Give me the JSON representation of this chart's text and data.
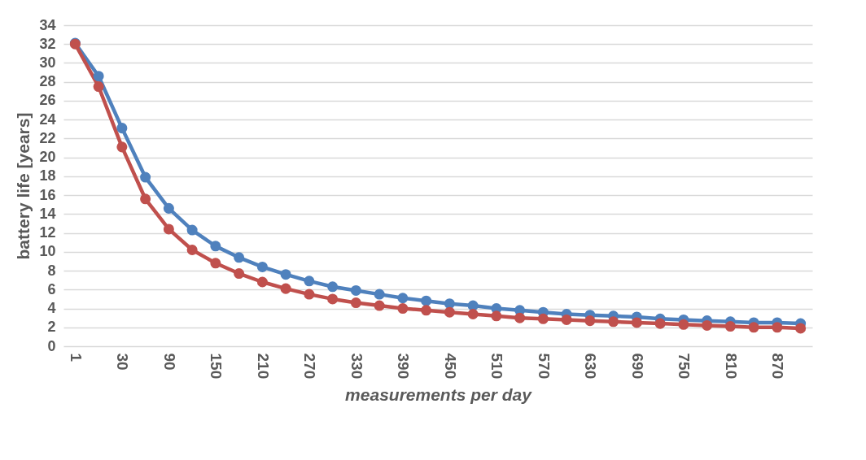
{
  "chart_data": {
    "type": "line",
    "xlabel": "measurements per day",
    "ylabel": "battery life [years]",
    "categories": [
      "1",
      null,
      "30",
      null,
      "90",
      null,
      "150",
      null,
      "210",
      null,
      "270",
      null,
      "330",
      null,
      "390",
      null,
      "450",
      null,
      "510",
      null,
      "570",
      null,
      "630",
      null,
      "690",
      null,
      "750",
      null,
      "810",
      null,
      "870",
      null
    ],
    "series": [
      {
        "color": "#4f81bd",
        "values": [
          32.1,
          28.6,
          23.1,
          17.9,
          14.6,
          12.3,
          10.6,
          9.4,
          8.4,
          7.6,
          6.9,
          6.3,
          5.9,
          5.5,
          5.1,
          4.8,
          4.5,
          4.3,
          4.0,
          3.8,
          3.6,
          3.4,
          3.3,
          3.2,
          3.1,
          2.9,
          2.8,
          2.7,
          2.6,
          2.5,
          2.5,
          2.4
        ]
      },
      {
        "color": "#c0504d",
        "values": [
          32.0,
          27.5,
          21.1,
          15.6,
          12.4,
          10.2,
          8.8,
          7.7,
          6.8,
          6.1,
          5.5,
          5.0,
          4.6,
          4.3,
          4.0,
          3.8,
          3.6,
          3.4,
          3.2,
          3.0,
          2.9,
          2.8,
          2.7,
          2.6,
          2.5,
          2.4,
          2.3,
          2.2,
          2.1,
          2.0,
          2.0,
          1.9
        ]
      }
    ],
    "ylim": [
      0,
      34
    ],
    "yticks": [
      0,
      2,
      4,
      6,
      8,
      10,
      12,
      14,
      16,
      18,
      20,
      22,
      24,
      26,
      28,
      30,
      32,
      34
    ],
    "grid": "y",
    "legend": false,
    "marker": "circle",
    "line_style": "solid"
  }
}
